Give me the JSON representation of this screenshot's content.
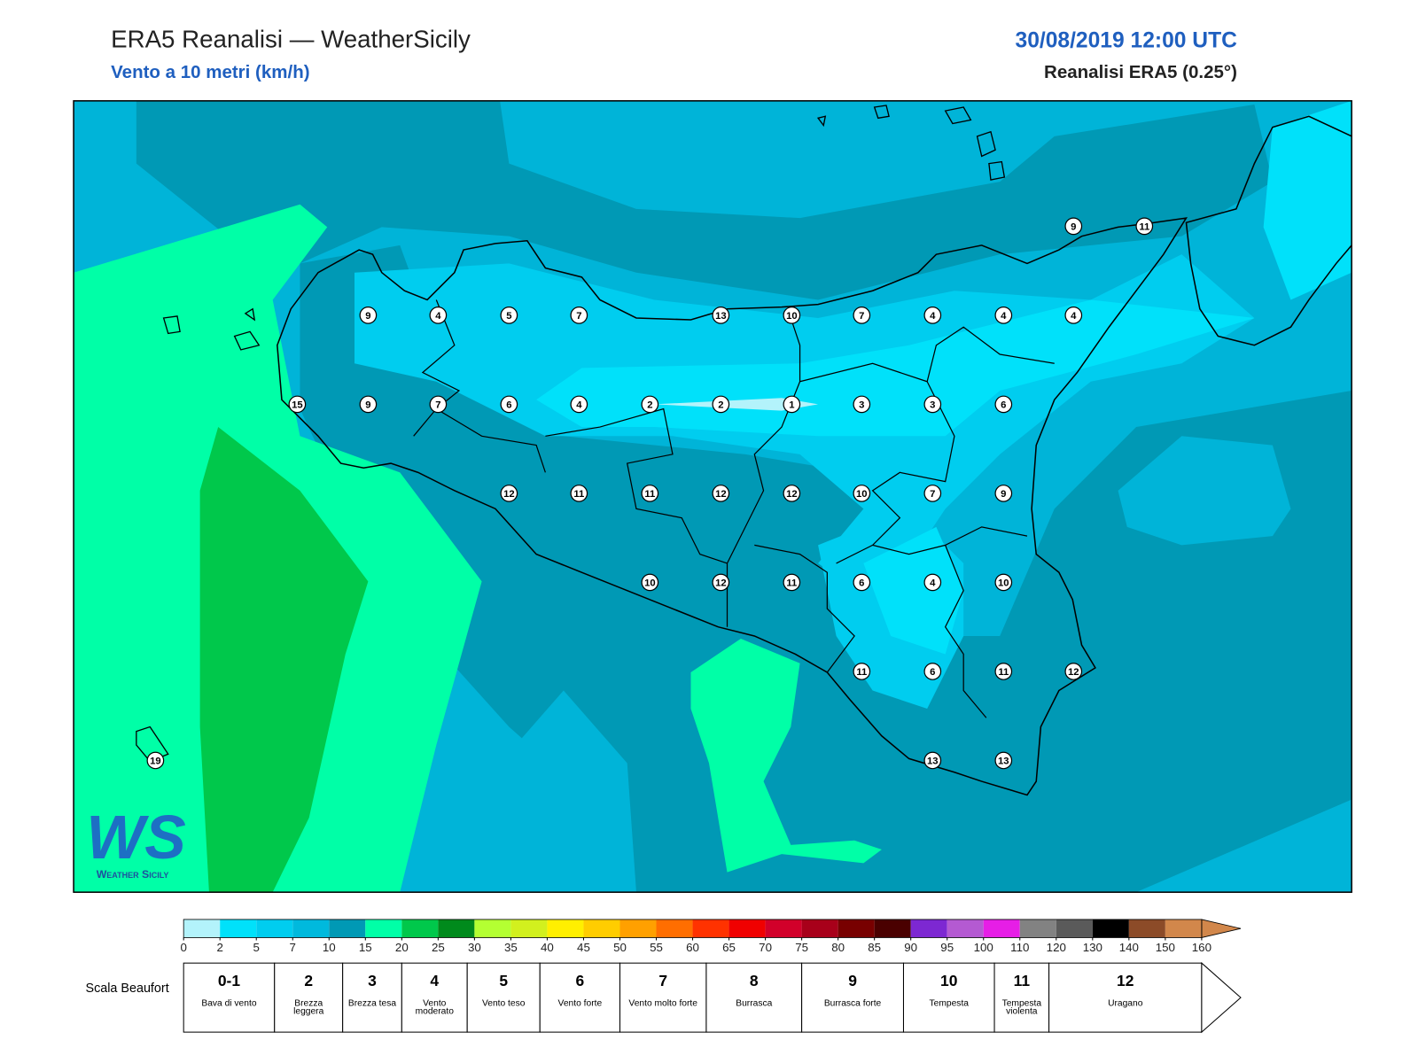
{
  "header": {
    "title": "ERA5 Reanalisi — WeatherSicily",
    "subtitle": "Vento a 10 metri (km/h)",
    "datetime": "30/08/2019 12:00 UTC",
    "source": "Reanalisi ERA5 (0.25°)"
  },
  "stations": [
    9,
    11,
    9,
    4,
    5,
    7,
    13,
    10,
    7,
    4,
    4,
    4,
    15,
    9,
    7,
    6,
    4,
    2,
    2,
    1,
    3,
    3,
    6,
    12,
    11,
    11,
    12,
    12,
    10,
    7,
    9,
    10,
    12,
    11,
    6,
    4,
    10,
    11,
    6,
    11,
    12,
    13,
    13,
    19
  ],
  "colorbar": {
    "ticks": [
      0,
      2,
      5,
      7,
      10,
      15,
      20,
      25,
      30,
      35,
      40,
      45,
      50,
      55,
      60,
      65,
      70,
      75,
      80,
      85,
      90,
      95,
      100,
      110,
      120,
      130,
      140,
      150,
      160
    ],
    "colors": [
      "#b3f3fb",
      "#00e1fa",
      "#00cdef",
      "#00b9dd",
      "#0099b5",
      "#00ffa7",
      "#00c84b",
      "#008a1c",
      "#b4ff32",
      "#d2f01e",
      "#ffef00",
      "#ffcd00",
      "#ffa000",
      "#ff6e00",
      "#ff3200",
      "#f00000",
      "#d2002a",
      "#a8001a",
      "#780000",
      "#4a0000",
      "#7d28d2",
      "#b45ad2",
      "#e61ee6",
      "#828282",
      "#5a5a5a",
      "#000000",
      "#8c4b28",
      "#d2874b"
    ]
  },
  "beaufort": {
    "title": "Scala Beaufort",
    "levels": [
      {
        "force": "0-1",
        "label": "Bava di vento"
      },
      {
        "force": 2,
        "label": "Brezza leggera"
      },
      {
        "force": 3,
        "label": "Brezza tesa"
      },
      {
        "force": 4,
        "label": "Vento moderato"
      },
      {
        "force": 5,
        "label": "Vento teso"
      },
      {
        "force": 6,
        "label": "Vento forte"
      },
      {
        "force": 7,
        "label": "Vento molto forte"
      },
      {
        "force": 8,
        "label": "Burrasca"
      },
      {
        "force": 9,
        "label": "Burrasca forte"
      },
      {
        "force": 10,
        "label": "Tempesta"
      },
      {
        "force": 11,
        "label": "Tempesta violenta"
      },
      {
        "force": 12,
        "label": "Uragano"
      }
    ]
  },
  "logo": {
    "mark": "WS",
    "name": "Weather Sicily"
  }
}
